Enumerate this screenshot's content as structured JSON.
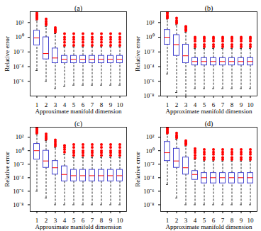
{
  "chart_data": [
    {
      "type": "box",
      "title": "(a)",
      "x_label": "Approximate manifold dimension",
      "y_label": "Relative error",
      "categories": [
        1,
        2,
        3,
        4,
        5,
        6,
        7,
        8,
        9,
        10
      ],
      "color": "#3333cc",
      "log": "y",
      "ylim": [
        1e-08,
        3000
      ],
      "yticks": [
        {
          "value": 1e-06,
          "label": "10⁻⁶"
        },
        {
          "value": 0.0001,
          "label": "10⁻⁴"
        },
        {
          "value": 0.01,
          "label": "10⁻²"
        },
        {
          "value": 1,
          "label": "10⁰"
        },
        {
          "value": 100,
          "label": "10²"
        }
      ],
      "boxes": [
        {
          "whisker_low": 3e-05,
          "q1": 0.08,
          "median": 0.8,
          "q3": 8,
          "whisker_high": 200,
          "outliers": [
            300,
            500,
            800,
            1200,
            2000
          ]
        },
        {
          "whisker_low": 1e-06,
          "q1": 0.001,
          "median": 0.006,
          "q3": 1,
          "whisker_high": 30,
          "outliers": [
            50,
            80,
            150,
            300
          ]
        },
        {
          "whisker_low": 1e-07,
          "q1": 0.0003,
          "median": 0.0015,
          "q3": 0.03,
          "whisker_high": 3,
          "outliers": [
            5,
            8,
            12,
            20
          ]
        },
        {
          "whisker_low": 2e-07,
          "q1": 0.0003,
          "median": 0.001,
          "q3": 0.003,
          "whisker_high": 0.05,
          "outliers": [
            0.08,
            0.2,
            0.5,
            1,
            3
          ]
        },
        {
          "whisker_low": 3e-07,
          "q1": 0.0003,
          "median": 0.001,
          "q3": 0.003,
          "whisker_high": 0.05,
          "outliers": [
            0.08,
            0.2,
            0.5,
            1,
            3
          ]
        },
        {
          "whisker_low": 3e-07,
          "q1": 0.0003,
          "median": 0.001,
          "q3": 0.003,
          "whisker_high": 0.05,
          "outliers": [
            0.08,
            0.2,
            0.5,
            1,
            3
          ]
        },
        {
          "whisker_low": 3e-07,
          "q1": 0.0003,
          "median": 0.001,
          "q3": 0.003,
          "whisker_high": 0.05,
          "outliers": [
            0.08,
            0.2,
            0.5,
            1,
            3
          ]
        },
        {
          "whisker_low": 3e-07,
          "q1": 0.0003,
          "median": 0.001,
          "q3": 0.003,
          "whisker_high": 0.05,
          "outliers": [
            0.08,
            0.2,
            0.5,
            1,
            3
          ]
        },
        {
          "whisker_low": 3e-07,
          "q1": 0.0003,
          "median": 0.001,
          "q3": 0.003,
          "whisker_high": 0.05,
          "outliers": [
            0.08,
            0.2,
            0.5,
            1,
            3
          ]
        },
        {
          "whisker_low": 3e-07,
          "q1": 0.0003,
          "median": 0.001,
          "q3": 0.003,
          "whisker_high": 0.05,
          "outliers": [
            0.08,
            0.2,
            0.5,
            1,
            3
          ]
        }
      ]
    },
    {
      "type": "box",
      "title": "(b)",
      "x_label": "Approximate manifold dimension",
      "y_label": "Relative error",
      "categories": [
        1,
        2,
        3,
        4,
        5,
        6,
        7,
        8,
        9,
        10
      ],
      "color": "#3333cc",
      "log": "y",
      "ylim": [
        1e-08,
        3000
      ],
      "yticks": [
        {
          "value": 1e-08,
          "label": "10⁻⁸"
        },
        {
          "value": 1e-06,
          "label": "10⁻⁶"
        },
        {
          "value": 0.0001,
          "label": "10⁻⁴"
        },
        {
          "value": 0.01,
          "label": "10⁻²"
        },
        {
          "value": 1,
          "label": "10⁰"
        },
        {
          "value": 100,
          "label": "10²"
        }
      ],
      "boxes": [
        {
          "whisker_low": 1e-05,
          "q1": 0.1,
          "median": 1,
          "q3": 10,
          "whisker_high": 300,
          "outliers": [
            400,
            600,
            900,
            1500,
            2500
          ]
        },
        {
          "whisker_low": 3e-08,
          "q1": 0.003,
          "median": 0.1,
          "q3": 2,
          "whisker_high": 50,
          "outliers": [
            80,
            120,
            200,
            400
          ]
        },
        {
          "whisker_low": 1e-08,
          "q1": 0.0003,
          "median": 0.003,
          "q3": 0.1,
          "whisker_high": 5,
          "outliers": [
            8,
            12,
            20,
            30
          ]
        },
        {
          "whisker_low": 1e-07,
          "q1": 0.00015,
          "median": 0.0005,
          "q3": 0.0015,
          "whisker_high": 0.03,
          "outliers": [
            0.05,
            0.1,
            0.3,
            0.6,
            1
          ]
        },
        {
          "whisker_low": 1e-07,
          "q1": 0.00015,
          "median": 0.0005,
          "q3": 0.0015,
          "whisker_high": 0.03,
          "outliers": [
            0.05,
            0.1,
            0.3,
            0.6,
            1
          ]
        },
        {
          "whisker_low": 1e-07,
          "q1": 0.00015,
          "median": 0.0005,
          "q3": 0.0015,
          "whisker_high": 0.03,
          "outliers": [
            0.05,
            0.1,
            0.3,
            0.6,
            1
          ]
        },
        {
          "whisker_low": 1e-07,
          "q1": 0.00015,
          "median": 0.0005,
          "q3": 0.0015,
          "whisker_high": 0.03,
          "outliers": [
            0.05,
            0.1,
            0.3,
            0.6,
            1
          ]
        },
        {
          "whisker_low": 1e-07,
          "q1": 0.00015,
          "median": 0.0005,
          "q3": 0.0015,
          "whisker_high": 0.03,
          "outliers": [
            0.05,
            0.1,
            0.3,
            0.6,
            1
          ]
        },
        {
          "whisker_low": 1e-07,
          "q1": 0.00015,
          "median": 0.0005,
          "q3": 0.0015,
          "whisker_high": 0.03,
          "outliers": [
            0.05,
            0.1,
            0.3,
            0.6,
            1
          ]
        },
        {
          "whisker_low": 1e-07,
          "q1": 0.00015,
          "median": 0.0005,
          "q3": 0.0015,
          "whisker_high": 0.03,
          "outliers": [
            0.05,
            0.1,
            0.3,
            0.6,
            1
          ]
        }
      ]
    },
    {
      "type": "box",
      "title": "(c)",
      "x_label": "Approximate manifold dimension",
      "y_label": "Relative error",
      "categories": [
        1,
        2,
        3,
        4,
        5,
        6,
        7,
        8,
        9,
        10
      ],
      "color": "#3333cc",
      "log": "y",
      "ylim": [
        1e-09,
        3000
      ],
      "yticks": [
        {
          "value": 1e-08,
          "label": "10⁻⁸"
        },
        {
          "value": 1e-06,
          "label": "10⁻⁶"
        },
        {
          "value": 0.0001,
          "label": "10⁻⁴"
        },
        {
          "value": 0.01,
          "label": "10⁻²"
        },
        {
          "value": 1,
          "label": "10⁰"
        },
        {
          "value": 100,
          "label": "10²"
        }
      ],
      "boxes": [
        {
          "whisker_low": 1e-06,
          "q1": 0.05,
          "median": 1,
          "q3": 10,
          "whisker_high": 300,
          "outliers": [
            400,
            600,
            900,
            1500,
            2500
          ]
        },
        {
          "whisker_low": 1e-07,
          "q1": 0.003,
          "median": 0.03,
          "q3": 1,
          "whisker_high": 30,
          "outliers": [
            50,
            80,
            150,
            300
          ]
        },
        {
          "whisker_low": 1e-08,
          "q1": 0.0003,
          "median": 0.003,
          "q3": 0.03,
          "whisker_high": 3,
          "outliers": [
            5,
            10,
            20,
            40
          ]
        },
        {
          "whisker_low": 1e-08,
          "q1": 3e-05,
          "median": 0.0003,
          "q3": 0.005,
          "whisker_high": 0.3,
          "outliers": [
            0.6,
            1.5,
            3,
            6
          ]
        },
        {
          "whisker_low": 1e-08,
          "q1": 3e-05,
          "median": 0.0002,
          "q3": 0.0015,
          "whisker_high": 0.1,
          "outliers": [
            0.2,
            0.5,
            1,
            3,
            8
          ]
        },
        {
          "whisker_low": 1e-08,
          "q1": 3e-05,
          "median": 0.0002,
          "q3": 0.0015,
          "whisker_high": 0.1,
          "outliers": [
            0.2,
            0.5,
            1,
            3,
            8
          ]
        },
        {
          "whisker_low": 1e-08,
          "q1": 3e-05,
          "median": 0.0002,
          "q3": 0.0015,
          "whisker_high": 0.1,
          "outliers": [
            0.2,
            0.5,
            1,
            3,
            8
          ]
        },
        {
          "whisker_low": 1e-08,
          "q1": 3e-05,
          "median": 0.0002,
          "q3": 0.0015,
          "whisker_high": 0.1,
          "outliers": [
            0.2,
            0.5,
            1,
            3,
            8
          ]
        },
        {
          "whisker_low": 1e-08,
          "q1": 3e-05,
          "median": 0.0002,
          "q3": 0.0015,
          "whisker_high": 0.1,
          "outliers": [
            0.2,
            0.5,
            1,
            3,
            8
          ]
        },
        {
          "whisker_low": 1e-08,
          "q1": 3e-05,
          "median": 0.0002,
          "q3": 0.0015,
          "whisker_high": 0.1,
          "outliers": [
            0.2,
            0.5,
            1,
            3,
            8
          ]
        }
      ]
    },
    {
      "type": "box",
      "title": "(d)",
      "x_label": "Approximate manifold dimension",
      "y_label": "Relative error",
      "categories": [
        1,
        2,
        3,
        4,
        5,
        6,
        7,
        8,
        9,
        10
      ],
      "color": "#3333cc",
      "log": "y",
      "ylim": [
        1e-09,
        3000
      ],
      "yticks": [
        {
          "value": 1e-08,
          "label": "10⁻⁸"
        },
        {
          "value": 1e-06,
          "label": "10⁻⁶"
        },
        {
          "value": 0.0001,
          "label": "10⁻⁴"
        },
        {
          "value": 0.01,
          "label": "10⁻²"
        },
        {
          "value": 1,
          "label": "10⁰"
        },
        {
          "value": 100,
          "label": "10²"
        }
      ],
      "boxes": [
        {
          "whisker_low": 1e-05,
          "q1": 0.03,
          "median": 0.5,
          "q3": 20,
          "whisker_high": 300,
          "outliers": [
            400,
            600,
            900,
            1500,
            2500
          ]
        },
        {
          "whisker_low": 1e-07,
          "q1": 0.003,
          "median": 0.03,
          "q3": 2,
          "whisker_high": 50,
          "outliers": [
            80,
            120,
            200,
            400
          ]
        },
        {
          "whisker_low": 1e-08,
          "q1": 0.0003,
          "median": 0.003,
          "q3": 0.1,
          "whisker_high": 5,
          "outliers": [
            8,
            12,
            20,
            30
          ]
        },
        {
          "whisker_low": 1e-08,
          "q1": 5e-05,
          "median": 0.0003,
          "q3": 0.001,
          "whisker_high": 0.05,
          "outliers": [
            0.08,
            0.2,
            0.5,
            1,
            2
          ]
        },
        {
          "whisker_low": 1e-08,
          "q1": 1.5e-05,
          "median": 0.0001,
          "q3": 0.0005,
          "whisker_high": 0.03,
          "outliers": [
            0.05,
            0.1,
            0.3,
            0.6,
            1.5
          ]
        },
        {
          "whisker_low": 1e-08,
          "q1": 1.5e-05,
          "median": 0.0001,
          "q3": 0.0005,
          "whisker_high": 0.03,
          "outliers": [
            0.05,
            0.1,
            0.3,
            0.6,
            1.5
          ]
        },
        {
          "whisker_low": 1e-08,
          "q1": 1.5e-05,
          "median": 0.0001,
          "q3": 0.0005,
          "whisker_high": 0.03,
          "outliers": [
            0.05,
            0.1,
            0.3,
            0.6,
            1.5
          ]
        },
        {
          "whisker_low": 1e-08,
          "q1": 1.5e-05,
          "median": 0.0001,
          "q3": 0.0005,
          "whisker_high": 0.03,
          "outliers": [
            0.05,
            0.1,
            0.3,
            0.6,
            1.5
          ]
        },
        {
          "whisker_low": 1e-08,
          "q1": 1.5e-05,
          "median": 0.0001,
          "q3": 0.0005,
          "whisker_high": 0.03,
          "outliers": [
            0.05,
            0.1,
            0.3,
            0.6,
            1.5
          ]
        },
        {
          "whisker_low": 1e-08,
          "q1": 1.5e-05,
          "median": 0.0001,
          "q3": 0.0005,
          "whisker_high": 0.03,
          "outliers": [
            0.05,
            0.1,
            0.3,
            0.6,
            1.5
          ]
        }
      ]
    }
  ]
}
